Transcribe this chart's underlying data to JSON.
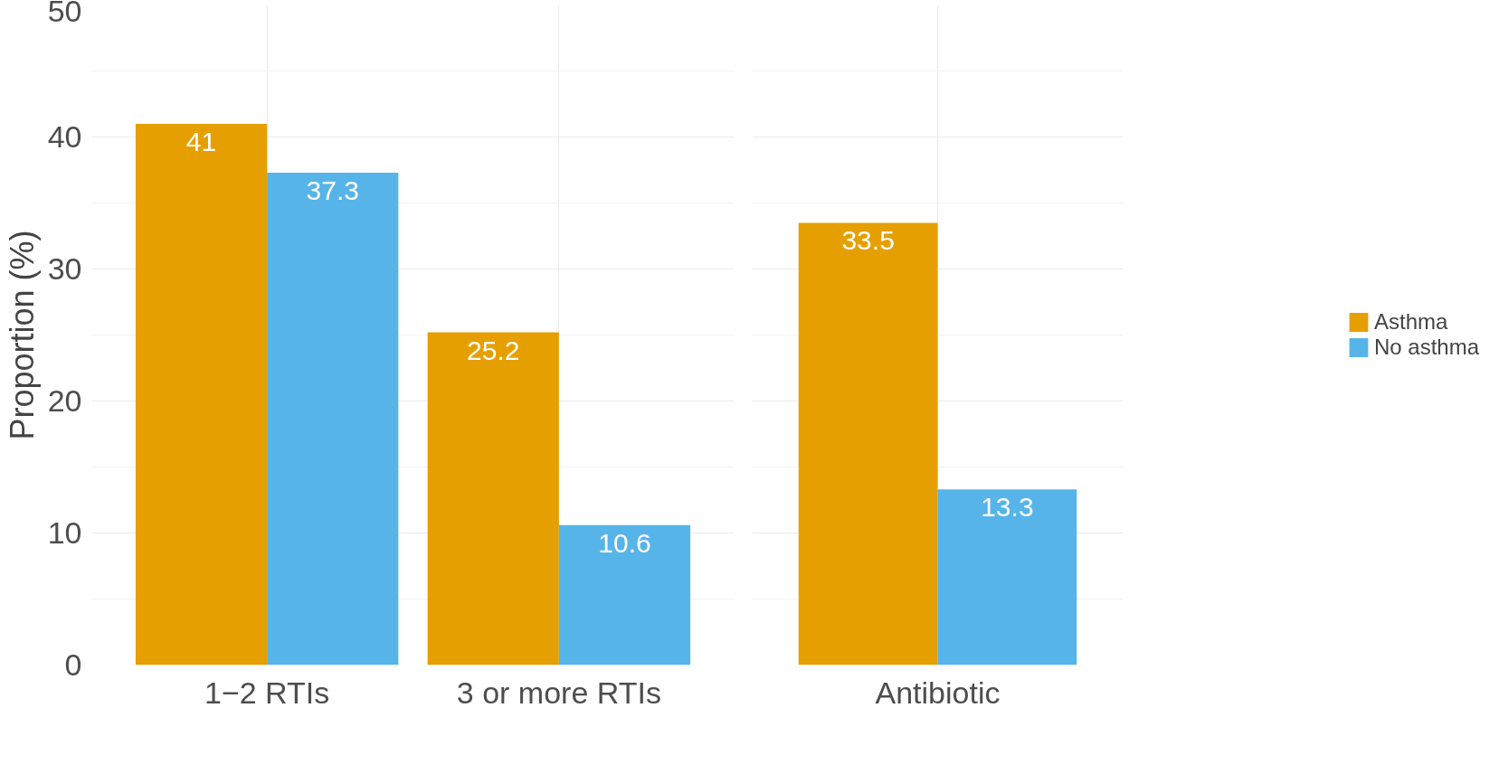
{
  "chart_data": [
    {
      "type": "bar",
      "ylabel": "Proportion (%)",
      "categories": [
        "1−2 RTIs",
        "3 or more RTIs"
      ],
      "series": [
        {
          "color": "#e69f00",
          "values": [
            41,
            25.2
          ]
        },
        {
          "color": "#56b4e9",
          "values": [
            37.3,
            10.6
          ]
        }
      ],
      "ylim": [
        0,
        50
      ],
      "yticks": [
        0,
        10,
        20,
        30,
        40,
        50
      ],
      "grid": true,
      "data_labels": true
    },
    {
      "type": "bar",
      "categories": [
        "Antibiotic"
      ],
      "series": [
        {
          "name": "Asthma",
          "color": "#e69f00",
          "values": [
            33.5
          ]
        },
        {
          "name": "No asthma",
          "color": "#56b4e9",
          "values": [
            13.3
          ]
        }
      ],
      "ylim": [
        0,
        50
      ],
      "yticks": [
        0,
        10,
        20,
        30,
        40,
        50
      ],
      "grid": true,
      "data_labels": true,
      "tick_labels": "x",
      "legend": "right"
    }
  ]
}
